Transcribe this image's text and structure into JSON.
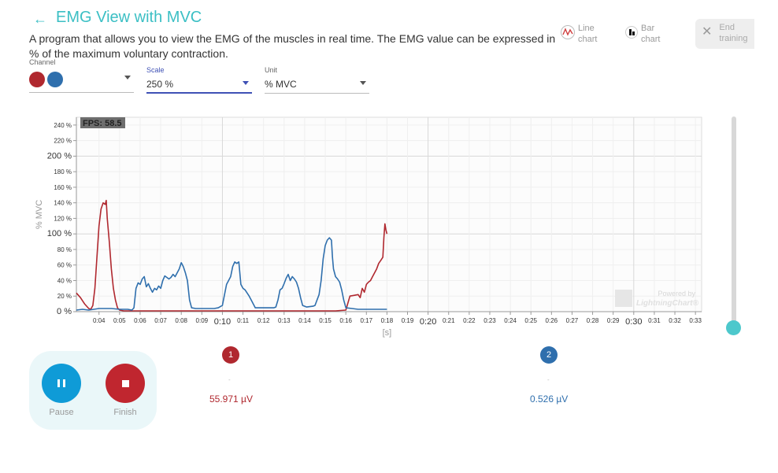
{
  "header": {
    "title": "EMG View with MVC",
    "description": "A program that allows you to view the EMG of the muscles in real time. The EMG value can be expressed in % of the maximum voluntary contraction."
  },
  "view_buttons": {
    "line_chart": "Line\nchart",
    "bar_chart": "Bar\nchart",
    "end_training": "End\ntraining"
  },
  "controls": {
    "channel": {
      "caption": "Channel",
      "colors": [
        "#b0282f",
        "#2f6fad"
      ]
    },
    "scale": {
      "caption": "Scale",
      "value": "250 %"
    },
    "unit": {
      "caption": "Unit",
      "value": "% MVC"
    }
  },
  "chart_data": {
    "type": "line",
    "fps_label": "FPS: 58.5",
    "ylabel": "% MVC",
    "xlabel": "[s]",
    "ylim": [
      0,
      250
    ],
    "yticks": [
      {
        "v": 0,
        "label": "0 %",
        "major": true
      },
      {
        "v": 20,
        "label": "20 %"
      },
      {
        "v": 40,
        "label": "40 %"
      },
      {
        "v": 60,
        "label": "60 %"
      },
      {
        "v": 80,
        "label": "80 %"
      },
      {
        "v": 100,
        "label": "100 %",
        "major": true
      },
      {
        "v": 120,
        "label": "120 %"
      },
      {
        "v": 140,
        "label": "140 %"
      },
      {
        "v": 160,
        "label": "160 %"
      },
      {
        "v": 180,
        "label": "180 %"
      },
      {
        "v": 200,
        "label": "200 %",
        "major": true
      },
      {
        "v": 220,
        "label": "220 %"
      },
      {
        "v": 240,
        "label": "240 %"
      }
    ],
    "xlim": [
      2.9,
      33.3
    ],
    "xticks": [
      {
        "v": 4,
        "label": "0:04"
      },
      {
        "v": 5,
        "label": "0:05"
      },
      {
        "v": 6,
        "label": "0:06"
      },
      {
        "v": 7,
        "label": "0:07"
      },
      {
        "v": 8,
        "label": "0:08"
      },
      {
        "v": 9,
        "label": "0:09"
      },
      {
        "v": 10,
        "label": "0:10",
        "major": true
      },
      {
        "v": 11,
        "label": "0:11"
      },
      {
        "v": 12,
        "label": "0:12"
      },
      {
        "v": 13,
        "label": "0:13"
      },
      {
        "v": 14,
        "label": "0:14"
      },
      {
        "v": 15,
        "label": "0:15"
      },
      {
        "v": 16,
        "label": "0:16"
      },
      {
        "v": 17,
        "label": "0:17"
      },
      {
        "v": 18,
        "label": "0:18"
      },
      {
        "v": 19,
        "label": "0:19"
      },
      {
        "v": 20,
        "label": "0:20",
        "major": true
      },
      {
        "v": 21,
        "label": "0:21"
      },
      {
        "v": 22,
        "label": "0:22"
      },
      {
        "v": 23,
        "label": "0:23"
      },
      {
        "v": 24,
        "label": "0:24"
      },
      {
        "v": 25,
        "label": "0:25"
      },
      {
        "v": 26,
        "label": "0:26"
      },
      {
        "v": 27,
        "label": "0:27"
      },
      {
        "v": 28,
        "label": "0:28"
      },
      {
        "v": 29,
        "label": "0:29"
      },
      {
        "v": 30,
        "label": "0:30",
        "major": true
      },
      {
        "v": 31,
        "label": "0:31"
      },
      {
        "v": 32,
        "label": "0:32"
      },
      {
        "v": 33,
        "label": "0:33"
      }
    ],
    "watermark": [
      "Powered by",
      "LightningChart®"
    ],
    "series": [
      {
        "color": "#b0282f",
        "points": [
          [
            2.9,
            24
          ],
          [
            3.1,
            18
          ],
          [
            3.3,
            10
          ],
          [
            3.5,
            4
          ],
          [
            3.6,
            3
          ],
          [
            3.7,
            8
          ],
          [
            3.8,
            30
          ],
          [
            3.9,
            70
          ],
          [
            4.0,
            110
          ],
          [
            4.1,
            132
          ],
          [
            4.2,
            140
          ],
          [
            4.3,
            138
          ],
          [
            4.35,
            143
          ],
          [
            4.4,
            120
          ],
          [
            4.5,
            90
          ],
          [
            4.6,
            55
          ],
          [
            4.7,
            30
          ],
          [
            4.8,
            15
          ],
          [
            4.9,
            5
          ],
          [
            5.0,
            2
          ],
          [
            5.2,
            1
          ],
          [
            6,
            1
          ],
          [
            8,
            1
          ],
          [
            10,
            1
          ],
          [
            12,
            1
          ],
          [
            14,
            1
          ],
          [
            15.5,
            1
          ],
          [
            16,
            2
          ],
          [
            16.2,
            20
          ],
          [
            16.4,
            21
          ],
          [
            16.6,
            22
          ],
          [
            16.7,
            18
          ],
          [
            16.8,
            30
          ],
          [
            16.9,
            25
          ],
          [
            17.0,
            35
          ],
          [
            17.1,
            38
          ],
          [
            17.2,
            40
          ],
          [
            17.3,
            45
          ],
          [
            17.4,
            50
          ],
          [
            17.5,
            55
          ],
          [
            17.6,
            62
          ],
          [
            17.7,
            66
          ],
          [
            17.8,
            70
          ],
          [
            17.85,
            95
          ],
          [
            17.9,
            113
          ],
          [
            17.95,
            105
          ],
          [
            18.0,
            100
          ]
        ]
      },
      {
        "color": "#2f6fad",
        "points": [
          [
            2.9,
            2
          ],
          [
            3.2,
            3
          ],
          [
            3.5,
            2
          ],
          [
            4.0,
            4
          ],
          [
            4.6,
            4
          ],
          [
            5.0,
            3
          ],
          [
            5.2,
            3
          ],
          [
            5.4,
            3
          ],
          [
            5.6,
            2
          ],
          [
            5.7,
            5
          ],
          [
            5.8,
            30
          ],
          [
            5.9,
            37
          ],
          [
            6.0,
            35
          ],
          [
            6.1,
            42
          ],
          [
            6.2,
            45
          ],
          [
            6.3,
            32
          ],
          [
            6.4,
            36
          ],
          [
            6.5,
            30
          ],
          [
            6.6,
            25
          ],
          [
            6.7,
            30
          ],
          [
            6.8,
            28
          ],
          [
            6.9,
            33
          ],
          [
            7.0,
            30
          ],
          [
            7.1,
            40
          ],
          [
            7.2,
            46
          ],
          [
            7.3,
            44
          ],
          [
            7.4,
            42
          ],
          [
            7.5,
            44
          ],
          [
            7.6,
            48
          ],
          [
            7.7,
            45
          ],
          [
            7.8,
            50
          ],
          [
            7.9,
            55
          ],
          [
            8.0,
            63
          ],
          [
            8.1,
            58
          ],
          [
            8.2,
            50
          ],
          [
            8.3,
            40
          ],
          [
            8.4,
            15
          ],
          [
            8.5,
            5
          ],
          [
            8.7,
            4
          ],
          [
            9.2,
            4
          ],
          [
            9.6,
            4
          ],
          [
            9.8,
            5
          ],
          [
            10.0,
            8
          ],
          [
            10.2,
            35
          ],
          [
            10.4,
            45
          ],
          [
            10.5,
            58
          ],
          [
            10.6,
            64
          ],
          [
            10.7,
            62
          ],
          [
            10.8,
            64
          ],
          [
            10.9,
            35
          ],
          [
            11.0,
            30
          ],
          [
            11.1,
            28
          ],
          [
            11.3,
            20
          ],
          [
            11.5,
            10
          ],
          [
            11.6,
            5
          ],
          [
            11.8,
            5
          ],
          [
            12.2,
            5
          ],
          [
            12.5,
            5
          ],
          [
            12.6,
            6
          ],
          [
            12.7,
            15
          ],
          [
            12.8,
            28
          ],
          [
            12.9,
            30
          ],
          [
            13.0,
            36
          ],
          [
            13.1,
            43
          ],
          [
            13.2,
            48
          ],
          [
            13.3,
            40
          ],
          [
            13.4,
            45
          ],
          [
            13.5,
            42
          ],
          [
            13.6,
            38
          ],
          [
            13.7,
            30
          ],
          [
            13.8,
            18
          ],
          [
            13.9,
            8
          ],
          [
            14.1,
            6
          ],
          [
            14.4,
            7
          ],
          [
            14.5,
            8
          ],
          [
            14.6,
            15
          ],
          [
            14.7,
            22
          ],
          [
            14.8,
            40
          ],
          [
            14.9,
            68
          ],
          [
            15.0,
            85
          ],
          [
            15.1,
            92
          ],
          [
            15.2,
            95
          ],
          [
            15.3,
            92
          ],
          [
            15.35,
            70
          ],
          [
            15.4,
            55
          ],
          [
            15.5,
            45
          ],
          [
            15.6,
            42
          ],
          [
            15.7,
            38
          ],
          [
            15.8,
            28
          ],
          [
            15.9,
            15
          ],
          [
            16.0,
            5
          ],
          [
            16.3,
            4
          ],
          [
            16.6,
            3
          ],
          [
            17,
            3
          ],
          [
            17.5,
            3
          ],
          [
            18.0,
            3
          ]
        ]
      }
    ]
  },
  "channels": [
    {
      "number": "1",
      "dash": "-",
      "value": "55.971 µV",
      "color": "#b0282f"
    },
    {
      "number": "2",
      "dash": "-",
      "value": "0.526 µV",
      "color": "#2f6fad"
    }
  ],
  "actions": {
    "pause": "Pause",
    "finish": "Finish"
  }
}
